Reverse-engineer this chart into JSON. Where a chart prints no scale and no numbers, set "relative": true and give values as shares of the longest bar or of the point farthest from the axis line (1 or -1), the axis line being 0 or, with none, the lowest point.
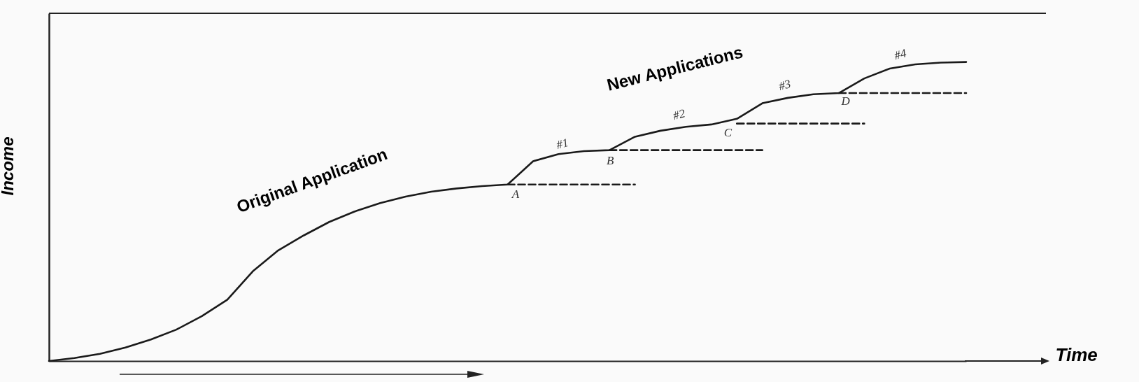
{
  "chart_data": {
    "type": "line",
    "xlabel": "Time",
    "ylabel": "Income",
    "relative": true,
    "categories": [
      null,
      null,
      null,
      null,
      null,
      null,
      null,
      null,
      null,
      null,
      null,
      null,
      null,
      null,
      null,
      null,
      null,
      null,
      null,
      null,
      null,
      null,
      null,
      null,
      null,
      null,
      null,
      null,
      null,
      null,
      null,
      null,
      null,
      null,
      null,
      null,
      null
    ],
    "series": [
      {
        "color": "#1a1a1a",
        "values": [
          0,
          0.01,
          0.024,
          0.045,
          0.072,
          0.105,
          0.15,
          0.205,
          0.3,
          0.37,
          0.42,
          0.465,
          0.5,
          0.528,
          0.55,
          0.566,
          0.577,
          0.585,
          0.59,
          0.668,
          0.692,
          0.702,
          0.705,
          0.75,
          0.77,
          0.783,
          0.791,
          0.81,
          0.862,
          0.88,
          0.892,
          0.896,
          0.945,
          0.978,
          0.992,
          0.998,
          1
        ]
      },
      {
        "color": "#1a1a1a",
        "line_style": "dashed",
        "values": [
          null,
          null,
          null,
          null,
          null,
          null,
          null,
          null,
          null,
          null,
          null,
          null,
          null,
          null,
          null,
          null,
          null,
          null,
          0.59,
          0.59,
          0.59,
          0.59,
          0.59,
          0.59,
          null,
          null,
          null,
          null,
          null,
          null,
          null,
          null,
          null,
          null,
          null,
          null,
          null
        ]
      },
      {
        "color": "#1a1a1a",
        "line_style": "dashed",
        "values": [
          null,
          null,
          null,
          null,
          null,
          null,
          null,
          null,
          null,
          null,
          null,
          null,
          null,
          null,
          null,
          null,
          null,
          null,
          null,
          null,
          null,
          null,
          0.705,
          0.705,
          0.705,
          0.705,
          0.705,
          0.705,
          0.705,
          null,
          null,
          null,
          null,
          null,
          null,
          null,
          null
        ]
      },
      {
        "color": "#1a1a1a",
        "line_style": "dashed",
        "values": [
          null,
          null,
          null,
          null,
          null,
          null,
          null,
          null,
          null,
          null,
          null,
          null,
          null,
          null,
          null,
          null,
          null,
          null,
          null,
          null,
          null,
          null,
          null,
          null,
          null,
          null,
          null,
          0.794,
          0.794,
          0.794,
          0.794,
          0.794,
          0.794,
          null,
          null,
          null,
          null
        ]
      },
      {
        "color": "#1a1a1a",
        "line_style": "dashed",
        "values": [
          null,
          null,
          null,
          null,
          null,
          null,
          null,
          null,
          null,
          null,
          null,
          null,
          null,
          null,
          null,
          null,
          null,
          null,
          null,
          null,
          null,
          null,
          null,
          null,
          null,
          null,
          null,
          null,
          null,
          null,
          null,
          0.896,
          0.896,
          0.896,
          0.896,
          0.896,
          0.896
        ]
      }
    ],
    "annotations": [
      "Original Application",
      "New Applications",
      "#1",
      "#2",
      "#3",
      "#4",
      "A",
      "B",
      "C",
      "D"
    ]
  }
}
